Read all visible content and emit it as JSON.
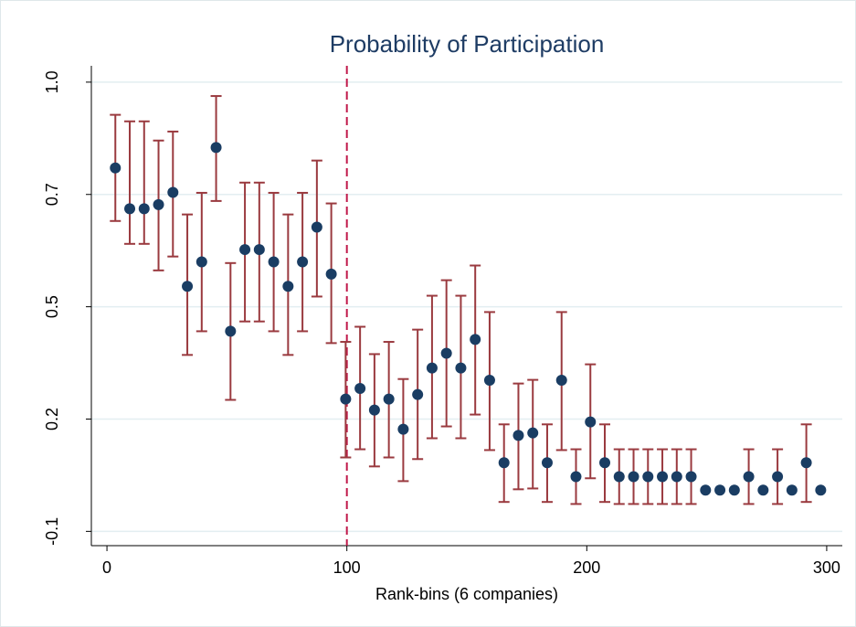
{
  "chart_data": {
    "type": "scatter",
    "title": "Probability of Participation",
    "x_label": "Rank-bins (6 companies)",
    "x": [
      3.5,
      9.5,
      15.5,
      21.5,
      27.5,
      33.5,
      39.5,
      45.5,
      51.5,
      57.5,
      63.5,
      69.5,
      75.5,
      81.5,
      87.5,
      93.5,
      99.5,
      105.5,
      111.5,
      117.5,
      123.5,
      129.5,
      135.5,
      141.5,
      147.5,
      153.5,
      159.5,
      165.5,
      171.5,
      177.5,
      183.5,
      189.5,
      195.5,
      201.5,
      207.5,
      213.5,
      219.5,
      225.5,
      231.5,
      237.5,
      243.5,
      249.5,
      255.5,
      261.5,
      267.5,
      273.5,
      279.5,
      285.5,
      291.5,
      297.5
    ],
    "values": [
      0.79,
      0.69,
      0.69,
      0.7,
      0.73,
      0.5,
      0.56,
      0.84,
      0.39,
      0.59,
      0.59,
      0.56,
      0.5,
      0.56,
      0.645,
      0.53,
      0.224,
      0.25,
      0.197,
      0.224,
      0.15,
      0.235,
      0.3,
      0.336,
      0.3,
      0.37,
      0.27,
      0.068,
      0.135,
      0.141,
      0.068,
      0.27,
      0.034,
      0.168,
      0.068,
      0.034,
      0.034,
      0.034,
      0.034,
      0.034,
      0.034,
      0.001,
      0.001,
      0.001,
      0.034,
      0.001,
      0.034,
      0.001,
      0.068,
      0.001
    ],
    "ci_low": [
      0.66,
      0.604,
      0.604,
      0.539,
      0.573,
      0.332,
      0.39,
      0.709,
      0.222,
      0.414,
      0.414,
      0.39,
      0.332,
      0.39,
      0.475,
      0.361,
      0.081,
      0.101,
      0.059,
      0.081,
      0.023,
      0.077,
      0.128,
      0.157,
      0.128,
      0.186,
      0.099,
      -0.028,
      0.003,
      0.005,
      -0.028,
      0.099,
      -0.033,
      0.03,
      -0.028,
      -0.033,
      -0.033,
      -0.033,
      -0.033,
      -0.033,
      -0.033,
      null,
      null,
      null,
      -0.033,
      null,
      -0.033,
      null,
      -0.028,
      null
    ],
    "ci_high": [
      0.92,
      0.904,
      0.904,
      0.857,
      0.879,
      0.676,
      0.729,
      0.966,
      0.557,
      0.754,
      0.754,
      0.729,
      0.676,
      0.729,
      0.808,
      0.703,
      0.364,
      0.401,
      0.334,
      0.364,
      0.273,
      0.394,
      0.477,
      0.515,
      0.477,
      0.551,
      0.437,
      0.162,
      0.262,
      0.271,
      0.162,
      0.437,
      0.101,
      0.309,
      0.162,
      0.101,
      0.101,
      0.101,
      0.101,
      0.101,
      0.101,
      null,
      null,
      null,
      0.101,
      null,
      0.101,
      null,
      0.162,
      null
    ],
    "color": "#1a3d63",
    "ci_color": "#9a3a3f",
    "vline": 100,
    "vline_color": "#c0194a",
    "xlim": [
      -6.5,
      306.5
    ],
    "ylim": [
      -0.135,
      1.04
    ],
    "xticks": [
      0,
      100,
      200,
      300
    ],
    "yticks": [
      {
        "value": -0.1,
        "label": "-0.1"
      },
      {
        "value": 0.175,
        "label": "0.2"
      },
      {
        "value": 0.45,
        "label": "0.5"
      },
      {
        "value": 0.725,
        "label": "0.7"
      },
      {
        "value": 1.0,
        "label": "1.0"
      }
    ],
    "grid": true
  }
}
